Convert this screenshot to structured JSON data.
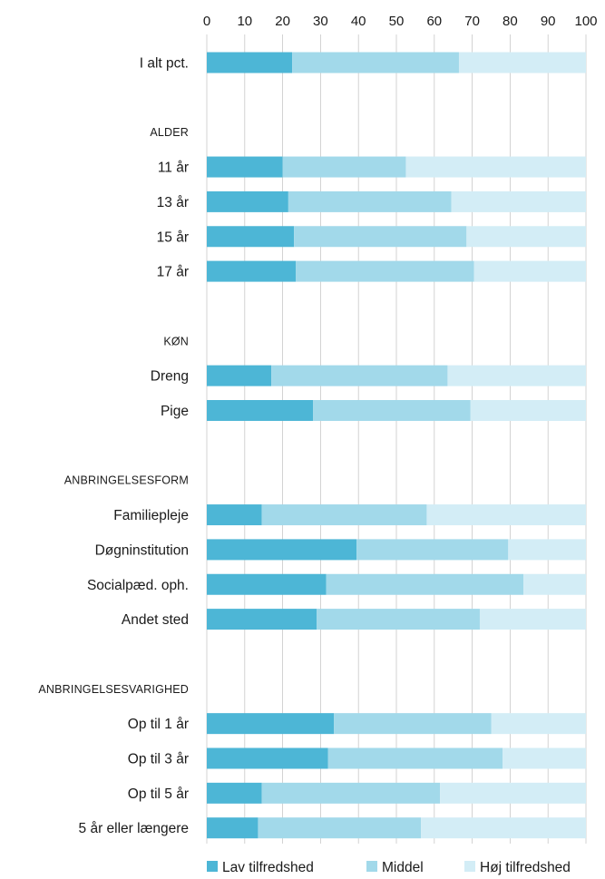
{
  "chart_data": {
    "type": "bar",
    "stacked": true,
    "orientation": "horizontal",
    "xlim": [
      0,
      100
    ],
    "x_ticks": [
      "0",
      "10",
      "20",
      "30",
      "40",
      "50",
      "60",
      "70",
      "80",
      "90",
      "100"
    ],
    "grid": true,
    "legend_position": "bottom",
    "series": [
      {
        "name": "Lav tilfredshed",
        "color": "#4db6d6"
      },
      {
        "name": "Middel",
        "color": "#a2d9ea"
      },
      {
        "name": "Høj tilfredshed",
        "color": "#d3edf6"
      }
    ],
    "rows": [
      {
        "kind": "category",
        "label": "I alt pct.",
        "values": [
          22.5,
          44,
          33.5
        ]
      },
      {
        "kind": "gap"
      },
      {
        "kind": "group",
        "label": "ALDER"
      },
      {
        "kind": "category",
        "label": "11 år",
        "values": [
          20,
          32.5,
          47.5
        ]
      },
      {
        "kind": "category",
        "label": "13 år",
        "values": [
          21.5,
          43,
          35.5
        ]
      },
      {
        "kind": "category",
        "label": "15 år",
        "values": [
          23,
          45.5,
          31.5
        ]
      },
      {
        "kind": "category",
        "label": "17 år",
        "values": [
          23.5,
          47,
          29.5
        ]
      },
      {
        "kind": "gap"
      },
      {
        "kind": "group",
        "label": "KØN"
      },
      {
        "kind": "category",
        "label": "Dreng",
        "values": [
          17,
          46.5,
          36.5
        ]
      },
      {
        "kind": "category",
        "label": "Pige",
        "values": [
          28,
          41.5,
          30.5
        ]
      },
      {
        "kind": "gap"
      },
      {
        "kind": "group",
        "label": "ANBRINGELSESFORM"
      },
      {
        "kind": "category",
        "label": "Familiepleje",
        "values": [
          14.5,
          43.5,
          42
        ]
      },
      {
        "kind": "category",
        "label": "Døgninstitution",
        "values": [
          39.5,
          40,
          20.5
        ]
      },
      {
        "kind": "category",
        "label": "Socialpæd. oph.",
        "values": [
          31.5,
          52,
          16.5
        ]
      },
      {
        "kind": "category",
        "label": "Andet sted",
        "values": [
          29,
          43,
          28
        ]
      },
      {
        "kind": "gap"
      },
      {
        "kind": "group",
        "label": "ANBRINGELSESVARIGHED"
      },
      {
        "kind": "category",
        "label": "Op til 1 år",
        "values": [
          33.5,
          41.5,
          25
        ]
      },
      {
        "kind": "category",
        "label": "Op til 3 år",
        "values": [
          32,
          46,
          22
        ]
      },
      {
        "kind": "category",
        "label": "Op til 5 år",
        "values": [
          14.5,
          47,
          38.5
        ]
      },
      {
        "kind": "category",
        "label": "5 år eller længere",
        "values": [
          13.5,
          43,
          43.5
        ]
      }
    ]
  }
}
